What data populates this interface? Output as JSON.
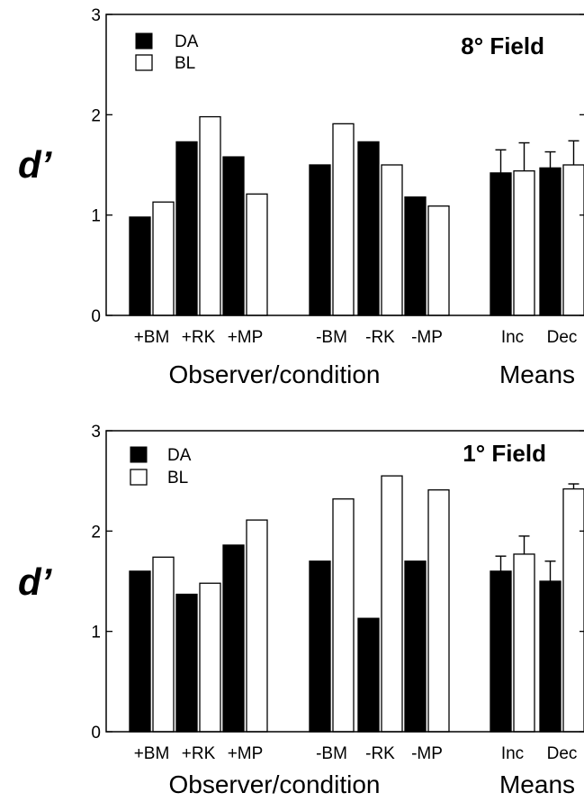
{
  "chart_data": [
    {
      "type": "bar",
      "title": "8° Field",
      "ylabel": "d’",
      "ylim": [
        0,
        3
      ],
      "yticks": [
        0,
        1,
        2,
        3
      ],
      "legend": [
        {
          "name": "DA",
          "color": "#000000"
        },
        {
          "name": "BL",
          "color": "#ffffff"
        }
      ],
      "legend_placement": "top-left",
      "categories": [
        "+BM",
        "+RK",
        "+MP",
        "-BM",
        "-RK",
        "-MP",
        "Inc",
        "Dec"
      ],
      "series": [
        {
          "name": "DA",
          "color": "#000000",
          "values": [
            0.98,
            1.73,
            1.58,
            1.5,
            1.73,
            1.18,
            1.42,
            1.47
          ]
        },
        {
          "name": "BL",
          "color": "#ffffff",
          "values": [
            1.13,
            1.98,
            1.21,
            1.91,
            1.5,
            1.09,
            1.44,
            1.5
          ]
        }
      ],
      "error_bars": {
        "Inc": {
          "DA": 0.23,
          "BL": 0.28
        },
        "Dec": {
          "DA": 0.16,
          "BL": 0.24
        }
      },
      "group_labels": [
        "Observer/condition",
        "Means"
      ],
      "grid": false
    },
    {
      "type": "bar",
      "title": "1° Field",
      "ylabel": "d’",
      "ylim": [
        0,
        3
      ],
      "yticks": [
        0,
        1,
        2,
        3
      ],
      "legend": [
        {
          "name": "DA",
          "color": "#000000"
        },
        {
          "name": "BL",
          "color": "#ffffff"
        }
      ],
      "legend_placement": "top-left",
      "categories": [
        "+BM",
        "+RK",
        "+MP",
        "-BM",
        "-RK",
        "-MP",
        "Inc",
        "Dec"
      ],
      "series": [
        {
          "name": "DA",
          "color": "#000000",
          "values": [
            1.6,
            1.37,
            1.86,
            1.7,
            1.13,
            1.7,
            1.6,
            1.5
          ]
        },
        {
          "name": "BL",
          "color": "#ffffff",
          "values": [
            1.74,
            1.48,
            2.11,
            2.32,
            2.55,
            2.41,
            1.77,
            2.42
          ]
        }
      ],
      "error_bars": {
        "Inc": {
          "DA": 0.15,
          "BL": 0.18
        },
        "Dec": {
          "DA": 0.2,
          "BL": 0.05
        }
      },
      "group_labels": [
        "Observer/condition",
        "Means"
      ],
      "grid": false
    }
  ]
}
